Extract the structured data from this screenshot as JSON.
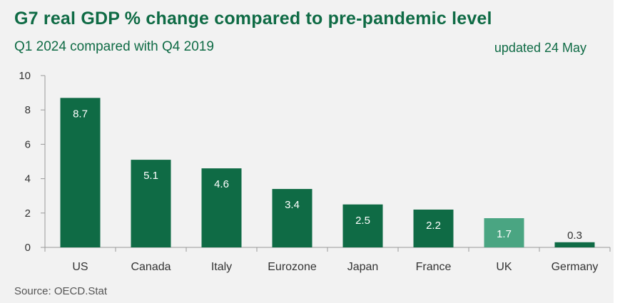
{
  "header": {
    "title": "G7 real GDP % change compared to pre-pandemic level",
    "subtitle": "Q1 2024 compared with Q4 2019",
    "updated": "updated 24 May"
  },
  "footer": {
    "source": "Source: OECD.Stat"
  },
  "colors": {
    "title": "#0f6b45",
    "bar_default": "#0f6b45",
    "bar_highlight": "#4aa582",
    "axis": "#999999",
    "label_inside": "#ffffff",
    "label_outside": "#333333"
  },
  "chart_data": {
    "type": "bar",
    "title": "G7 real GDP % change compared to pre-pandemic level",
    "subtitle": "Q1 2024 compared with Q4 2019",
    "categories": [
      "US",
      "Canada",
      "Italy",
      "Eurozone",
      "Japan",
      "France",
      "UK",
      "Germany"
    ],
    "values": [
      8.7,
      5.1,
      4.6,
      3.4,
      2.5,
      2.2,
      1.7,
      0.3
    ],
    "data_labels": [
      "8.7",
      "5.1",
      "4.6",
      "3.4",
      "2.5",
      "2.2",
      "1.7",
      "0.3"
    ],
    "highlight_category": "UK",
    "ylim": [
      0,
      10
    ],
    "yticks": [
      0,
      2,
      4,
      6,
      8,
      10
    ],
    "xlabel": "",
    "ylabel": "",
    "grid": false,
    "legend": "none"
  }
}
